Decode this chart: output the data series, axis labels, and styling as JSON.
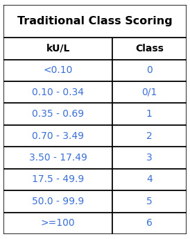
{
  "title": "Traditional Class Scoring",
  "col_headers": [
    "kU/L",
    "Class"
  ],
  "rows": [
    [
      "<0.10",
      "0"
    ],
    [
      "0.10 - 0.34",
      "0/1"
    ],
    [
      "0.35 - 0.69",
      "1"
    ],
    [
      "0.70 - 3.49",
      "2"
    ],
    [
      "3.50 - 17.49",
      "3"
    ],
    [
      "17.5 - 49.9",
      "4"
    ],
    [
      "50.0 - 99.9",
      "5"
    ],
    [
      ">=100",
      "6"
    ]
  ],
  "title_fontsize": 11.5,
  "header_fontsize": 10,
  "cell_fontsize": 10,
  "bg_color": "#ffffff",
  "text_color_header": "#000000",
  "text_color_cell": "#3a6fd8",
  "border_color": "#000000",
  "title_font_weight": "bold",
  "header_font_weight": "bold",
  "cell_font_weight": "normal",
  "fig_width": 2.74,
  "fig_height": 3.44,
  "dpi": 100,
  "col_split": 0.595
}
